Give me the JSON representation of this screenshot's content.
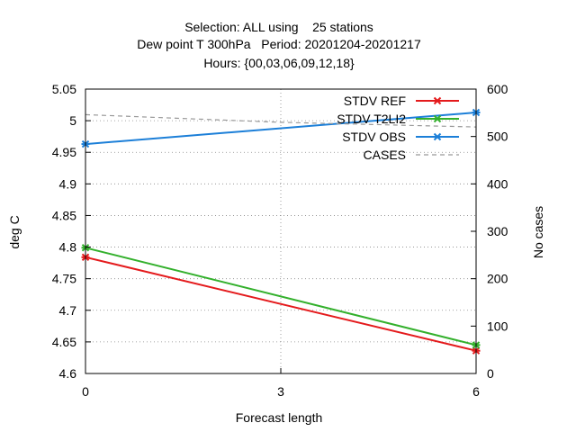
{
  "chart_data": {
    "type": "line",
    "title_lines": [
      "Selection: ALL using    25 stations",
      "Dew point T 300hPa   Period: 20201204-20201217",
      "Hours: {00,03,06,09,12,18}"
    ],
    "xlabel": "Forecast length",
    "ylabel": "deg C",
    "y2label": "No cases",
    "x": [
      0,
      3,
      6
    ],
    "xlim": [
      0,
      6
    ],
    "ylim": [
      4.6,
      5.05
    ],
    "y2lim": [
      0,
      600
    ],
    "xticks": [
      0,
      3,
      6
    ],
    "yticks": [
      4.6,
      4.65,
      4.7,
      4.75,
      4.8,
      4.85,
      4.9,
      4.95,
      5,
      5.05
    ],
    "y2ticks": [
      0,
      100,
      200,
      300,
      400,
      500,
      600
    ],
    "grid": true,
    "legend_position": "top-right",
    "series": [
      {
        "name": "STDV REF",
        "axis": "left",
        "color": "#e41a1c",
        "marker": "x",
        "x": [
          0,
          6
        ],
        "values": [
          4.784,
          4.636
        ]
      },
      {
        "name": "STDV T2LI2",
        "axis": "left",
        "color": "#33b02c",
        "marker": "x",
        "x": [
          0,
          6
        ],
        "values": [
          4.799,
          4.645
        ]
      },
      {
        "name": "STDV OBS",
        "axis": "left",
        "color": "#1c7fd8",
        "marker": "x",
        "x": [
          0,
          6
        ],
        "values": [
          4.963,
          5.013
        ]
      },
      {
        "name": "CASES",
        "axis": "right",
        "color": "#999999",
        "dashed": true,
        "x": [
          0,
          3,
          6
        ],
        "values": [
          546,
          530,
          520
        ]
      }
    ]
  }
}
